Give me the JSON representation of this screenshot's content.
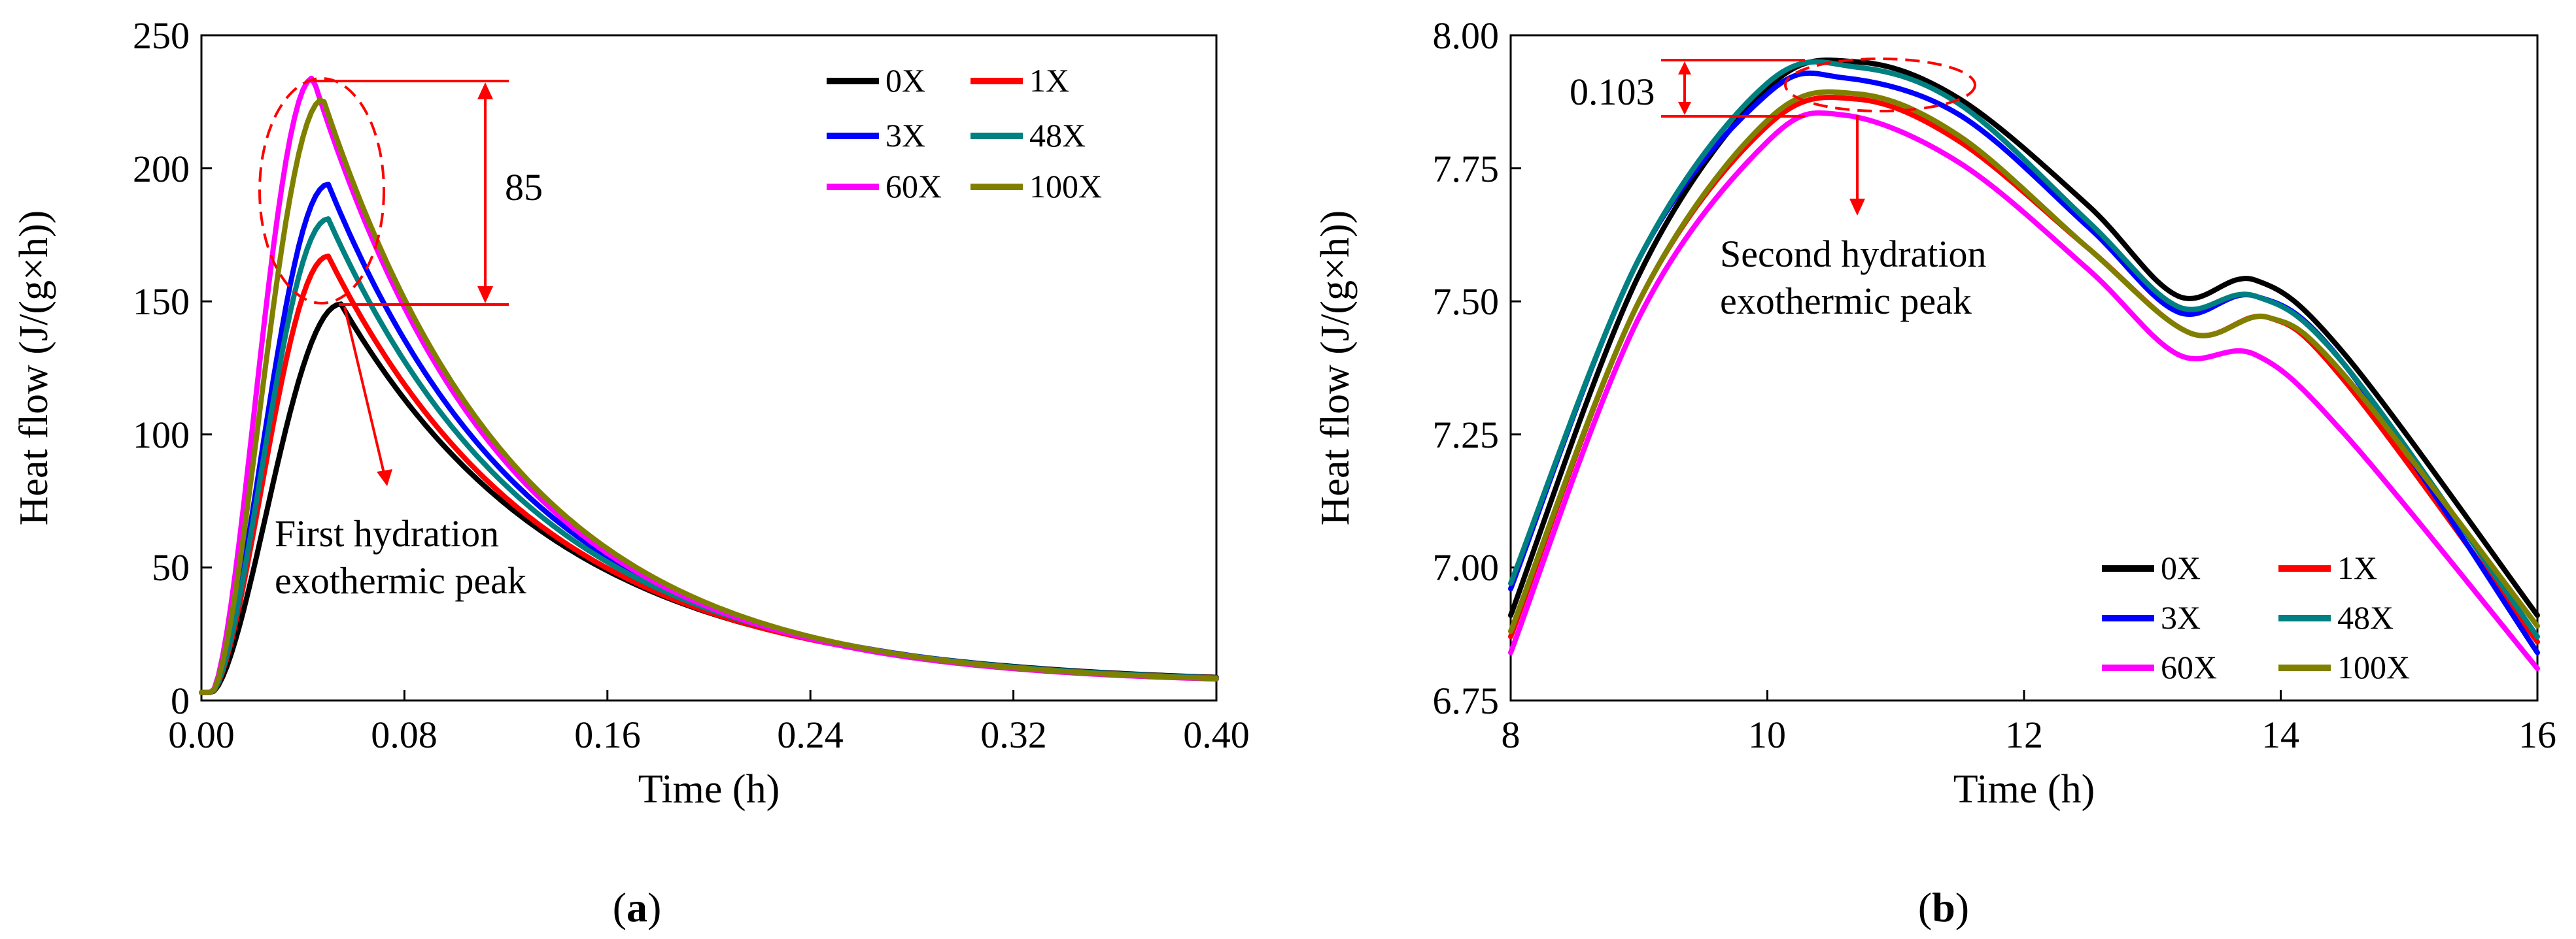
{
  "colors": {
    "0X": "#000000",
    "1X": "#ff0000",
    "3X": "#0000ff",
    "48X": "#008080",
    "60X": "#ff00ff",
    "100X": "#808000",
    "annotation": "#ff0000"
  },
  "chart_data": [
    {
      "type": "line",
      "id": "a",
      "caption_open": "(",
      "caption_letter": "a",
      "caption_close": ")",
      "xlabel": "Time (h)",
      "ylabel": "Heat flow (J/(g×h))",
      "xlim": [
        0,
        0.4
      ],
      "ylim": [
        0,
        250
      ],
      "xticks": [
        "0.00",
        "0.08",
        "0.16",
        "0.24",
        "0.32",
        "0.40"
      ],
      "yticks": [
        "0",
        "50",
        "100",
        "150",
        "200",
        "250"
      ],
      "legend": [
        "0X",
        "1X",
        "3X",
        "48X",
        "60X",
        "100X"
      ],
      "annotations": {
        "difference_label": "85",
        "peak_label_line1": "First hydration",
        "peak_label_line2": "exothermic peak"
      },
      "series": [
        {
          "name": "0X",
          "peak_x": 0.055,
          "peak_y": 149
        },
        {
          "name": "1X",
          "peak_x": 0.05,
          "peak_y": 167
        },
        {
          "name": "3X",
          "peak_x": 0.05,
          "peak_y": 194
        },
        {
          "name": "48X",
          "peak_x": 0.05,
          "peak_y": 181
        },
        {
          "name": "60X",
          "peak_x": 0.044,
          "peak_y": 234
        },
        {
          "name": "100X",
          "peak_x": 0.048,
          "peak_y": 226
        }
      ]
    },
    {
      "type": "line",
      "id": "b",
      "caption_open": "(",
      "caption_letter": "b",
      "caption_close": ")",
      "xlabel": "Time (h)",
      "ylabel": "Heat flow (J/(g×h))",
      "xlim": [
        8,
        16
      ],
      "ylim": [
        6.75,
        8.0
      ],
      "xticks": [
        "8",
        "10",
        "12",
        "14",
        "16"
      ],
      "yticks": [
        "6.75",
        "7.00",
        "7.25",
        "7.50",
        "7.75",
        "8.00"
      ],
      "legend": [
        "0X",
        "1X",
        "3X",
        "48X",
        "60X",
        "100X"
      ],
      "annotations": {
        "difference_label": "0.103",
        "peak_label_line1": "Second hydration",
        "peak_label_line2": "exothermic peak"
      },
      "series": [
        {
          "name": "0X",
          "points": [
            [
              8,
              6.91
            ],
            [
              9,
              7.55
            ],
            [
              10,
              7.9
            ],
            [
              10.7,
              7.95
            ],
            [
              11.5,
              7.88
            ],
            [
              12.5,
              7.68
            ],
            [
              13.2,
              7.51
            ],
            [
              13.8,
              7.54
            ],
            [
              14.5,
              7.4
            ],
            [
              16,
              6.91
            ]
          ]
        },
        {
          "name": "1X",
          "points": [
            [
              8,
              6.87
            ],
            [
              9,
              7.5
            ],
            [
              10,
              7.83
            ],
            [
              10.7,
              7.88
            ],
            [
              11.5,
              7.8
            ],
            [
              12.5,
              7.6
            ],
            [
              13.3,
              7.44
            ],
            [
              13.9,
              7.47
            ],
            [
              14.5,
              7.35
            ],
            [
              16,
              6.86
            ]
          ]
        },
        {
          "name": "3X",
          "points": [
            [
              8,
              6.96
            ],
            [
              9,
              7.58
            ],
            [
              10,
              7.89
            ],
            [
              10.6,
              7.92
            ],
            [
              11.5,
              7.85
            ],
            [
              12.5,
              7.64
            ],
            [
              13.2,
              7.48
            ],
            [
              13.8,
              7.51
            ],
            [
              14.5,
              7.38
            ],
            [
              16,
              6.84
            ]
          ]
        },
        {
          "name": "48X",
          "points": [
            [
              8,
              6.97
            ],
            [
              9,
              7.58
            ],
            [
              10,
              7.91
            ],
            [
              10.7,
              7.94
            ],
            [
              11.5,
              7.87
            ],
            [
              12.5,
              7.65
            ],
            [
              13.2,
              7.49
            ],
            [
              13.8,
              7.51
            ],
            [
              14.5,
              7.38
            ],
            [
              16,
              6.87
            ]
          ]
        },
        {
          "name": "60X",
          "points": [
            [
              8,
              6.84
            ],
            [
              9,
              7.47
            ],
            [
              10,
              7.8
            ],
            [
              10.6,
              7.85
            ],
            [
              11.5,
              7.76
            ],
            [
              12.5,
              7.56
            ],
            [
              13.2,
              7.4
            ],
            [
              13.8,
              7.4
            ],
            [
              14.5,
              7.25
            ],
            [
              16,
              6.81
            ]
          ]
        },
        {
          "name": "100X",
          "points": [
            [
              8,
              6.88
            ],
            [
              9,
              7.5
            ],
            [
              10,
              7.84
            ],
            [
              10.7,
              7.89
            ],
            [
              11.5,
              7.81
            ],
            [
              12.5,
              7.6
            ],
            [
              13.3,
              7.44
            ],
            [
              13.9,
              7.47
            ],
            [
              14.5,
              7.36
            ],
            [
              16,
              6.89
            ]
          ]
        }
      ]
    }
  ]
}
